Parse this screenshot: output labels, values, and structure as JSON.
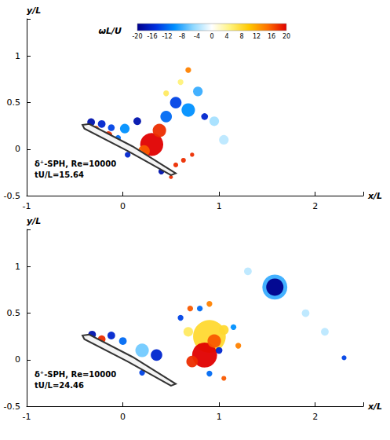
{
  "chart_data": [
    {
      "type": "scatter",
      "x_label": "x/L",
      "y_label": "y/L",
      "xlim": [
        -1,
        2.5
      ],
      "xticks": [
        -1,
        0,
        1,
        2
      ],
      "ylim": [
        -0.5,
        1.4
      ],
      "yticks": [
        -0.5,
        0,
        0.5,
        1
      ],
      "grid": false,
      "colorbar": {
        "label": "ωL/U",
        "range": [
          -20,
          20
        ],
        "ticks": [
          -20,
          -16,
          -12,
          -8,
          -4,
          0,
          4,
          8,
          12,
          16,
          20
        ],
        "colors": [
          "#00008c",
          "#0030e0",
          "#0090ff",
          "#8fd8ff",
          "#ffffff",
          "#fff27a",
          "#ffc800",
          "#ff7000",
          "#e00000"
        ]
      },
      "annotations": [
        "δ⁺-SPH, Re=10000",
        "tU/L=15.64"
      ],
      "body": {
        "x": [
          -0.42,
          -0.35,
          0.1,
          0.55,
          0.5,
          0.05,
          -0.4
        ],
        "y": [
          0.26,
          0.27,
          0.03,
          -0.26,
          -0.28,
          -0.02,
          0.22
        ]
      },
      "points": {
        "x": [
          -0.33,
          -0.22,
          -0.12,
          -0.28,
          -0.15,
          -0.05,
          0.02,
          0.15,
          0.3,
          0.38,
          0.22,
          0.45,
          0.55,
          0.68,
          0.85,
          0.78,
          0.45,
          0.6,
          0.68,
          0.55,
          0.63,
          0.72,
          0.5,
          0.4,
          0.05,
          0.95,
          1.05
        ],
        "y": [
          0.29,
          0.27,
          0.23,
          0.22,
          0.15,
          0.12,
          0.22,
          0.3,
          0.05,
          0.2,
          -0.02,
          0.35,
          0.5,
          0.42,
          0.35,
          0.62,
          0.6,
          0.72,
          0.85,
          -0.17,
          -0.12,
          -0.06,
          -0.3,
          -0.24,
          -0.06,
          0.3,
          0.1
        ],
        "vorticity": [
          -18,
          -16,
          -14,
          16,
          18,
          -12,
          -10,
          -18,
          20,
          18,
          16,
          -12,
          -14,
          -10,
          -16,
          -8,
          6,
          5,
          14,
          18,
          18,
          18,
          18,
          -18,
          -16,
          -4,
          -3
        ],
        "sizes": [
          0.04,
          0.04,
          0.035,
          0.03,
          0.04,
          0.03,
          0.05,
          0.04,
          0.12,
          0.07,
          0.06,
          0.06,
          0.06,
          0.07,
          0.035,
          0.05,
          0.03,
          0.03,
          0.03,
          0.025,
          0.025,
          0.022,
          0.02,
          0.03,
          0.03,
          0.05,
          0.05
        ]
      }
    },
    {
      "type": "scatter",
      "x_label": "x/L",
      "y_label": "y/L",
      "xlim": [
        -1,
        2.5
      ],
      "xticks": [
        -1,
        0,
        1,
        2
      ],
      "ylim": [
        -0.5,
        1.4
      ],
      "yticks": [
        -0.5,
        0,
        0.5,
        1
      ],
      "grid": false,
      "annotations": [
        "δ⁺-SPH, Re=10000",
        "tU/L=24.46"
      ],
      "body": {
        "x": [
          -0.42,
          -0.35,
          0.1,
          0.55,
          0.5,
          0.05,
          -0.4
        ],
        "y": [
          0.26,
          0.27,
          0.03,
          -0.26,
          -0.28,
          -0.02,
          0.22
        ]
      },
      "points": {
        "x": [
          1.58,
          1.58,
          2.3,
          1.3,
          1.9,
          2.1,
          -0.32,
          -0.22,
          -0.12,
          0.0,
          0.2,
          0.35,
          0.9,
          0.85,
          0.95,
          0.72,
          1.05,
          0.68,
          0.6,
          0.8,
          1.0,
          1.15,
          0.9,
          0.7,
          0.9,
          1.2,
          1.05,
          0.2
        ],
        "y": [
          0.78,
          0.78,
          0.02,
          0.95,
          0.5,
          0.3,
          0.27,
          0.22,
          0.26,
          0.2,
          0.1,
          0.05,
          0.25,
          0.05,
          0.2,
          -0.02,
          0.32,
          0.3,
          0.45,
          0.55,
          0.1,
          0.35,
          -0.15,
          0.55,
          0.6,
          0.15,
          -0.2,
          -0.14
        ],
        "vorticity": [
          -8,
          -20,
          -14,
          -3,
          -3,
          -3,
          -18,
          18,
          -16,
          -12,
          -6,
          -16,
          8,
          20,
          16,
          18,
          8,
          6,
          -14,
          -12,
          -16,
          -10,
          -12,
          16,
          14,
          14,
          16,
          -14
        ],
        "sizes": [
          0.13,
          0.09,
          0.025,
          0.04,
          0.04,
          0.04,
          0.04,
          0.04,
          0.04,
          0.04,
          0.07,
          0.06,
          0.17,
          0.13,
          0.07,
          0.06,
          0.05,
          0.05,
          0.03,
          0.03,
          0.035,
          0.03,
          0.03,
          0.03,
          0.03,
          0.03,
          0.025,
          0.03
        ]
      }
    }
  ]
}
